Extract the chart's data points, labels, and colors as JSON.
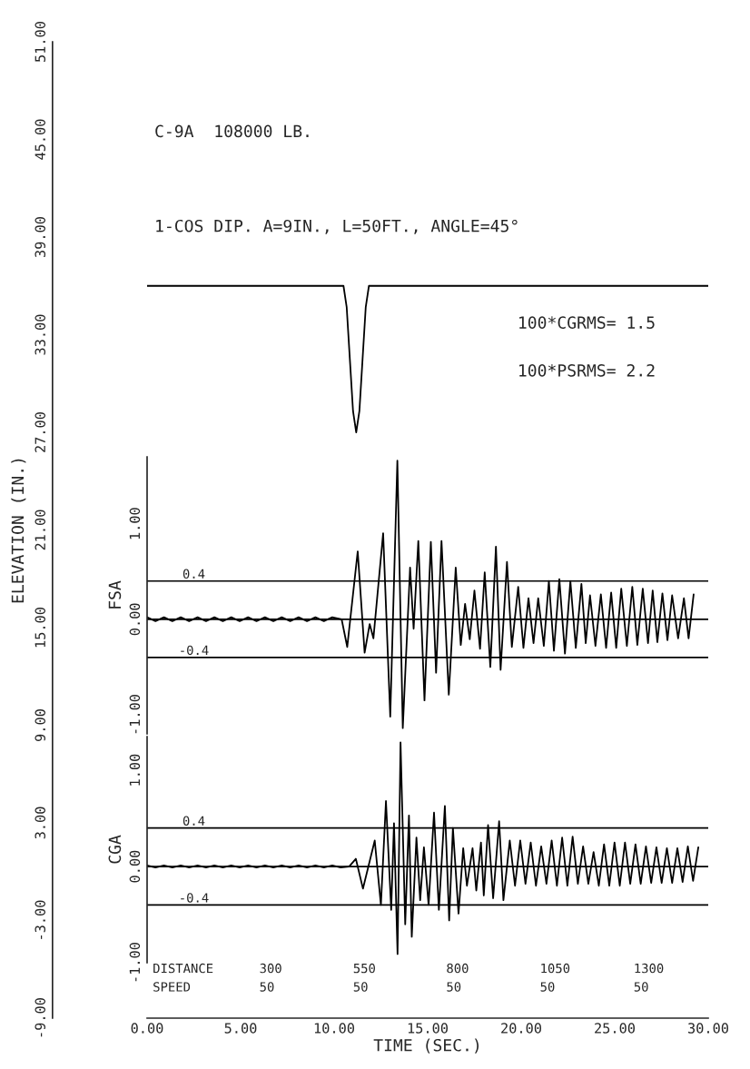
{
  "chart_data": [
    {
      "type": "line",
      "title": "C-9A  108000 LB.",
      "subtitle": "1-COS DIP. A=9IN., L=50FT., ANGLE=45°",
      "xlabel": "TIME (SEC.)",
      "ylabel": "ELEVATION (IN.)",
      "annotations": [
        "100*CGRMS= 1.5",
        "100*PSRMS= 2.2",
        "DISTANCE",
        "300",
        "550",
        "800",
        "1050",
        "1300",
        "SPEED",
        "50",
        "50",
        "50",
        "50",
        "50"
      ],
      "series": [
        {
          "color": "#000000",
          "x": [
            0,
            10.5,
            10.67,
            10.84,
            11.01,
            11.18,
            11.35,
            11.52,
            11.69,
            11.86,
            30
          ],
          "values": [
            36,
            36,
            34.7,
            31.5,
            28.3,
            27,
            28.3,
            31.5,
            34.7,
            36,
            36
          ]
        }
      ],
      "xlim": [
        0,
        30
      ],
      "ylim": [
        -9,
        51
      ],
      "xticks": [
        {
          "value": 0,
          "label": "0.00"
        },
        {
          "value": 5,
          "label": "5.00"
        },
        {
          "value": 10,
          "label": "10.00"
        },
        {
          "value": 15,
          "label": "15.00"
        },
        {
          "value": 20,
          "label": "20.00"
        },
        {
          "value": 25,
          "label": "25.00"
        },
        {
          "value": 30,
          "label": "30.00"
        }
      ],
      "yticks": [
        {
          "value": -9,
          "label": "-9.00"
        },
        {
          "value": -3,
          "label": "-3.00"
        },
        {
          "value": 3,
          "label": "3.00"
        },
        {
          "value": 9,
          "label": "9.00"
        },
        {
          "value": 15,
          "label": "15.00"
        },
        {
          "value": 21,
          "label": "21.00"
        },
        {
          "value": 27,
          "label": "27.00"
        },
        {
          "value": 33,
          "label": "33.00"
        },
        {
          "value": 39,
          "label": "39.00"
        },
        {
          "value": 45,
          "label": "45.00"
        },
        {
          "value": 51,
          "label": "51.00"
        }
      ],
      "grid": false,
      "legend": false
    },
    {
      "type": "line",
      "ylabel": "FSA",
      "xlim": [
        0,
        30
      ],
      "ylim": [
        -1.2,
        1.7
      ],
      "tick_labels": "y",
      "yticks": [
        {
          "value": -1,
          "label": "-1.00"
        },
        {
          "value": 0,
          "label": "0.00"
        },
        {
          "value": 1,
          "label": "1.00"
        }
      ],
      "ref_lines": [
        {
          "axis": "y",
          "value": 0.4,
          "label": "0.4"
        },
        {
          "axis": "y",
          "value": 0,
          "label": null
        },
        {
          "axis": "y",
          "value": -0.4,
          "label": "-0.4"
        }
      ],
      "series": [
        {
          "color": "#000000",
          "x": [
            0,
            0.45,
            0.9,
            1.35,
            1.8,
            2.25,
            2.7,
            3.15,
            3.6,
            4.05,
            4.5,
            4.95,
            5.4,
            5.85,
            6.3,
            6.75,
            7.2,
            7.65,
            8.1,
            8.55,
            9.0,
            9.45,
            9.9,
            10.4,
            10.7,
            11.26,
            11.63,
            11.9,
            12.1,
            12.62,
            13.0,
            13.38,
            13.67,
            14.06,
            14.25,
            14.5,
            14.83,
            15.17,
            15.45,
            15.74,
            16.13,
            16.5,
            16.77,
            17.0,
            17.25,
            17.5,
            17.8,
            18.05,
            18.35,
            18.65,
            18.9,
            19.24,
            19.5,
            19.84,
            20.12,
            20.39,
            20.66,
            20.91,
            21.21,
            21.48,
            21.75,
            22.04,
            22.34,
            22.63,
            22.92,
            23.22,
            23.45,
            23.68,
            23.97,
            24.26,
            24.54,
            24.81,
            25.08,
            25.35,
            25.65,
            25.94,
            26.21,
            26.5,
            26.78,
            27.03,
            27.28,
            27.55,
            27.82,
            28.07,
            28.39,
            28.7,
            28.95,
            29.22
          ],
          "values": [
            0.02,
            -0.02,
            0.02,
            -0.02,
            0.02,
            -0.02,
            0.02,
            -0.02,
            0.02,
            -0.02,
            0.02,
            -0.02,
            0.02,
            -0.02,
            0.02,
            -0.02,
            0.02,
            -0.02,
            0.02,
            -0.02,
            0.02,
            -0.02,
            0.02,
            0.0,
            -0.29,
            0.71,
            -0.35,
            -0.05,
            -0.2,
            0.9,
            -1.02,
            1.66,
            -1.14,
            0.54,
            -0.1,
            0.82,
            -0.85,
            0.81,
            -0.56,
            0.82,
            -0.79,
            0.54,
            -0.27,
            0.16,
            -0.21,
            0.3,
            -0.31,
            0.49,
            -0.5,
            0.76,
            -0.53,
            0.6,
            -0.29,
            0.34,
            -0.3,
            0.22,
            -0.25,
            0.22,
            -0.28,
            0.4,
            -0.33,
            0.42,
            -0.36,
            0.4,
            -0.3,
            0.37,
            -0.25,
            0.25,
            -0.28,
            0.26,
            -0.3,
            0.28,
            -0.3,
            0.32,
            -0.28,
            0.34,
            -0.27,
            0.32,
            -0.25,
            0.3,
            -0.24,
            0.27,
            -0.22,
            0.25,
            -0.2,
            0.22,
            -0.2,
            0.26
          ]
        }
      ],
      "grid": false,
      "legend": false
    },
    {
      "type": "line",
      "ylabel": "CGA",
      "xlim": [
        0,
        30
      ],
      "ylim": [
        -1,
        1.35
      ],
      "tick_labels": "y",
      "yticks": [
        {
          "value": -1,
          "label": "-1.00"
        },
        {
          "value": 0,
          "label": "0.00"
        },
        {
          "value": 1,
          "label": "1.00"
        }
      ],
      "ref_lines": [
        {
          "axis": "y",
          "value": 0.4,
          "label": "0.4"
        },
        {
          "axis": "y",
          "value": 0,
          "label": null
        },
        {
          "axis": "y",
          "value": -0.4,
          "label": "-0.4"
        }
      ],
      "series": [
        {
          "color": "#000000",
          "x": [
            0,
            0.45,
            0.9,
            1.35,
            1.8,
            2.25,
            2.7,
            3.15,
            3.6,
            4.05,
            4.5,
            4.95,
            5.4,
            5.85,
            6.3,
            6.75,
            7.2,
            7.65,
            8.1,
            8.55,
            9.0,
            9.45,
            9.9,
            10.35,
            10.8,
            11.16,
            11.54,
            12.17,
            12.5,
            12.77,
            13.05,
            13.2,
            13.39,
            13.55,
            13.8,
            14.0,
            14.15,
            14.4,
            14.6,
            14.8,
            15.05,
            15.34,
            15.6,
            15.92,
            16.15,
            16.35,
            16.65,
            16.9,
            17.1,
            17.4,
            17.6,
            17.85,
            18.0,
            18.23,
            18.5,
            18.82,
            19.05,
            19.39,
            19.67,
            19.95,
            20.23,
            20.51,
            20.79,
            21.07,
            21.35,
            21.63,
            21.91,
            22.19,
            22.47,
            22.75,
            23.03,
            23.31,
            23.59,
            23.87,
            24.15,
            24.43,
            24.71,
            24.99,
            25.27,
            25.55,
            25.83,
            26.11,
            26.39,
            26.67,
            26.95,
            27.23,
            27.51,
            27.79,
            28.07,
            28.35,
            28.63,
            28.91,
            29.19,
            29.47
          ],
          "values": [
            0.01,
            -0.01,
            0.01,
            -0.01,
            0.01,
            -0.01,
            0.01,
            -0.01,
            0.01,
            -0.01,
            0.01,
            -0.01,
            0.01,
            -0.01,
            0.01,
            -0.01,
            0.01,
            -0.01,
            0.01,
            -0.01,
            0.01,
            -0.01,
            0.01,
            -0.01,
            0.0,
            0.08,
            -0.23,
            0.27,
            -0.4,
            0.68,
            -0.45,
            0.45,
            -0.91,
            1.29,
            -0.6,
            0.53,
            -0.73,
            0.3,
            -0.35,
            0.2,
            -0.4,
            0.56,
            -0.45,
            0.63,
            -0.56,
            0.4,
            -0.49,
            0.19,
            -0.2,
            0.19,
            -0.25,
            0.25,
            -0.3,
            0.43,
            -0.33,
            0.47,
            -0.35,
            0.27,
            -0.2,
            0.27,
            -0.18,
            0.25,
            -0.2,
            0.21,
            -0.18,
            0.27,
            -0.2,
            0.3,
            -0.2,
            0.31,
            -0.18,
            0.21,
            -0.18,
            0.15,
            -0.2,
            0.23,
            -0.2,
            0.25,
            -0.2,
            0.25,
            -0.18,
            0.23,
            -0.18,
            0.21,
            -0.17,
            0.2,
            -0.17,
            0.19,
            -0.17,
            0.19,
            -0.16,
            0.21,
            -0.15,
            0.2
          ]
        }
      ],
      "grid": false,
      "legend": false
    }
  ]
}
